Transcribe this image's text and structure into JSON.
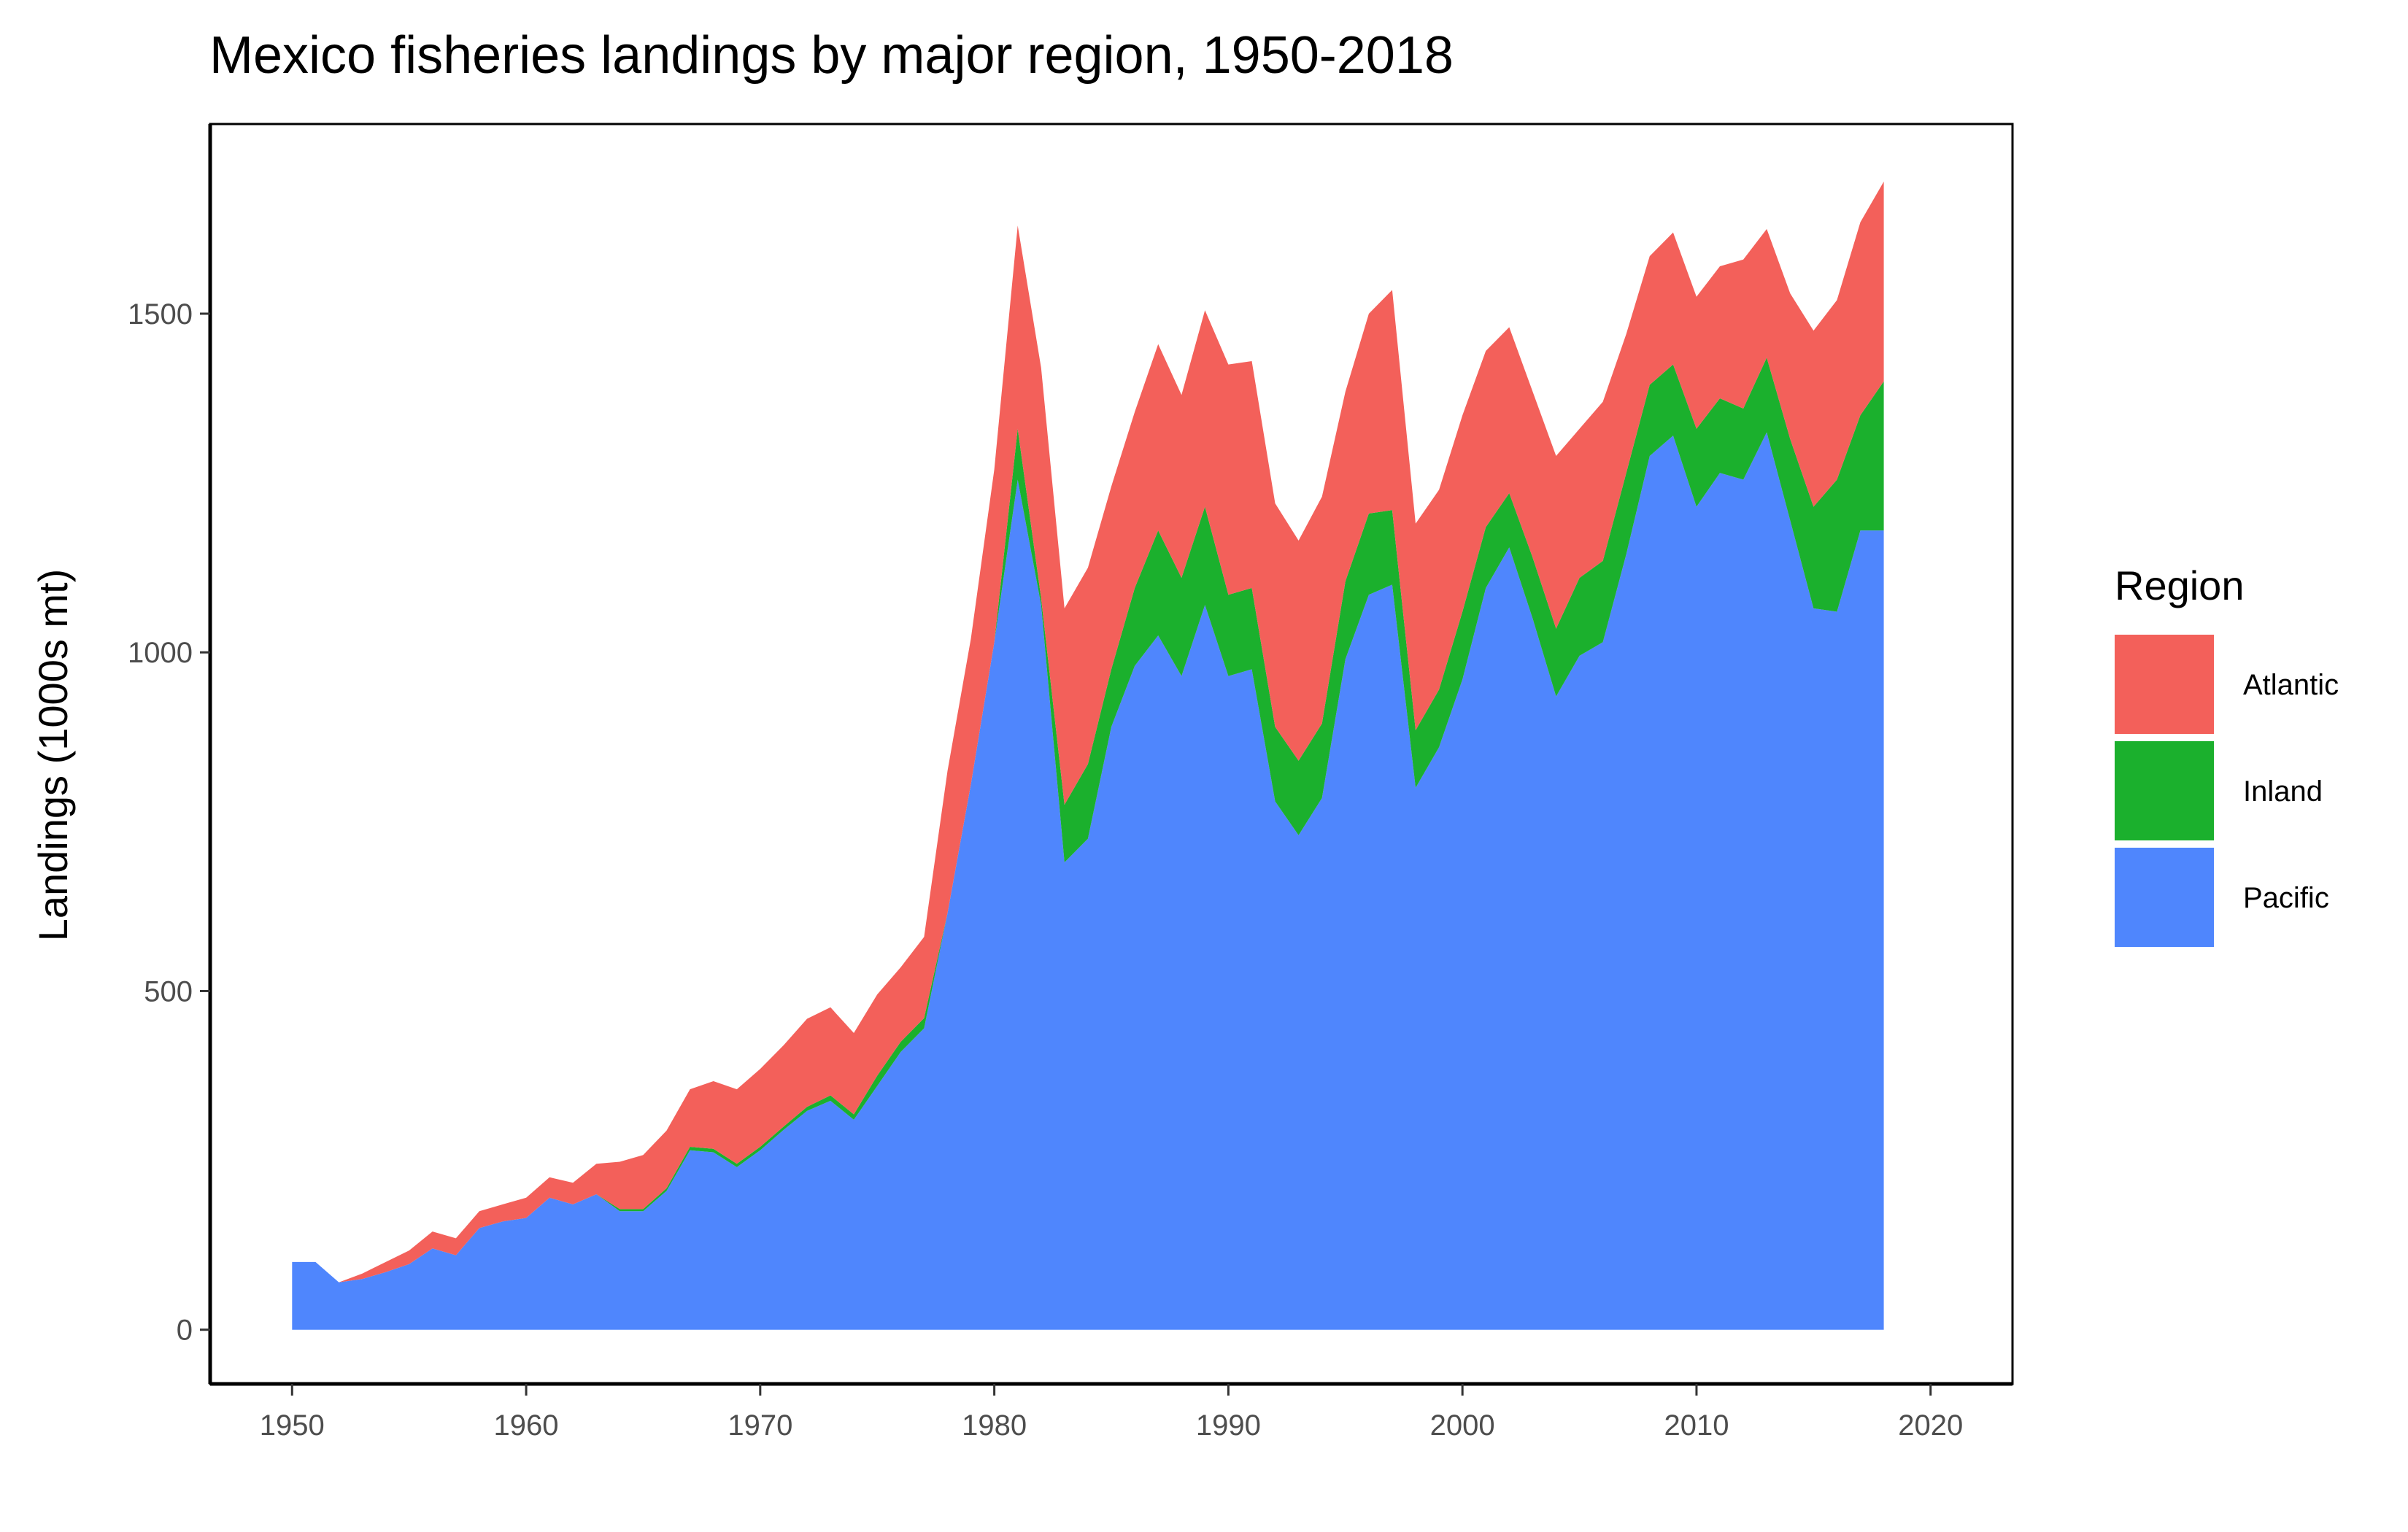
{
  "colors": {
    "Atlantic": "#f3605a",
    "Inland": "#1bb02d",
    "Pacific": "#4f86fd"
  },
  "chart_data": {
    "type": "area",
    "stacked": true,
    "title": "Mexico fisheries landings by major region, 1950-2018",
    "xlabel": "",
    "ylabel": "Landings (1000s mt)",
    "xlim": [
      1946.5,
      2023.5
    ],
    "ylim": [
      -80,
      1780
    ],
    "x_ticks": [
      1950,
      1960,
      1970,
      1980,
      1990,
      2000,
      2010,
      2020
    ],
    "y_ticks": [
      0,
      500,
      1000,
      1500
    ],
    "grid": false,
    "legend": {
      "title": "Region",
      "position": "right",
      "entries": [
        "Atlantic",
        "Inland",
        "Pacific"
      ]
    },
    "x": [
      1950,
      1951,
      1952,
      1953,
      1954,
      1955,
      1956,
      1957,
      1958,
      1959,
      1960,
      1961,
      1962,
      1963,
      1964,
      1965,
      1966,
      1967,
      1968,
      1969,
      1970,
      1971,
      1972,
      1973,
      1974,
      1975,
      1976,
      1977,
      1978,
      1979,
      1980,
      1981,
      1982,
      1983,
      1984,
      1985,
      1986,
      1987,
      1988,
      1989,
      1990,
      1991,
      1992,
      1993,
      1994,
      1995,
      1996,
      1997,
      1998,
      1999,
      2000,
      2001,
      2002,
      2003,
      2004,
      2005,
      2006,
      2007,
      2008,
      2009,
      2010,
      2011,
      2012,
      2013,
      2014,
      2015,
      2016,
      2017,
      2018
    ],
    "series": [
      {
        "name": "Pacific",
        "values": [
          100,
          100,
          70,
          75,
          85,
          97,
          120,
          110,
          150,
          160,
          165,
          195,
          185,
          200,
          175,
          175,
          205,
          265,
          262,
          240,
          265,
          295,
          323,
          338,
          310,
          360,
          410,
          445,
          615,
          805,
          1015,
          1255,
          1070,
          690,
          725,
          890,
          980,
          1025,
          965,
          1070,
          965,
          975,
          780,
          730,
          785,
          990,
          1085,
          1100,
          800,
          860,
          960,
          1095,
          1155,
          1050,
          935,
          995,
          1015,
          1145,
          1290,
          1320,
          1215,
          1265,
          1255,
          1325,
          1195,
          1065,
          1060,
          1180,
          1180
        ]
      },
      {
        "name": "Inland",
        "values": [
          0,
          0,
          0,
          0,
          0,
          0,
          0,
          0,
          0,
          0,
          0,
          0,
          0,
          0,
          3,
          3,
          4,
          5,
          5,
          5,
          5,
          5,
          6,
          8,
          8,
          15,
          15,
          15,
          0,
          0,
          0,
          75,
          10,
          85,
          110,
          85,
          115,
          155,
          145,
          145,
          120,
          120,
          110,
          110,
          110,
          115,
          120,
          110,
          85,
          85,
          100,
          90,
          80,
          90,
          100,
          115,
          120,
          120,
          105,
          105,
          115,
          110,
          105,
          110,
          120,
          150,
          195,
          170,
          220
        ]
      },
      {
        "name": "Atlantic",
        "values": [
          0,
          0,
          0,
          8,
          15,
          20,
          25,
          25,
          25,
          25,
          30,
          30,
          32,
          45,
          70,
          80,
          85,
          85,
          100,
          110,
          115,
          120,
          130,
          130,
          120,
          120,
          110,
          120,
          210,
          215,
          255,
          300,
          340,
          290,
          290,
          270,
          260,
          275,
          270,
          290,
          340,
          335,
          330,
          325,
          335,
          280,
          295,
          325,
          305,
          295,
          290,
          260,
          245,
          245,
          255,
          220,
          235,
          205,
          190,
          195,
          195,
          195,
          220,
          190,
          215,
          260,
          265,
          285,
          295
        ]
      }
    ]
  }
}
